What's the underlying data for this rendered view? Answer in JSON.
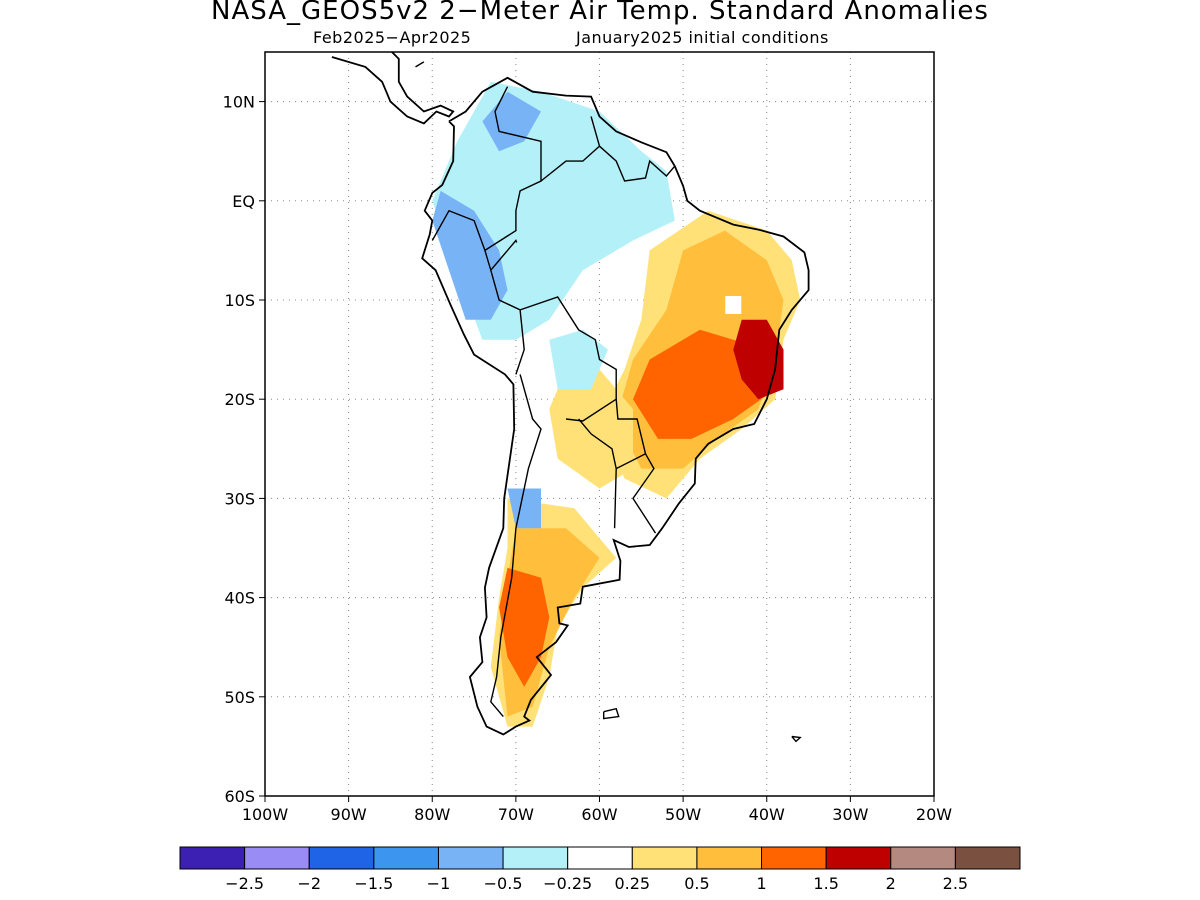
{
  "title": "NASA_GEOS5v2 2−Meter Air Temp. Standard Anomalies",
  "subtitle_left": "Feb2025−Apr2025",
  "subtitle_right": "January2025 initial conditions",
  "map": {
    "lon_range": [
      -100,
      -20
    ],
    "lat_range": [
      -60,
      15
    ],
    "lon_ticks": [
      {
        "value": -100,
        "label": "100W"
      },
      {
        "value": -90,
        "label": "90W"
      },
      {
        "value": -80,
        "label": "80W"
      },
      {
        "value": -70,
        "label": "70W"
      },
      {
        "value": -60,
        "label": "60W"
      },
      {
        "value": -50,
        "label": "50W"
      },
      {
        "value": -40,
        "label": "40W"
      },
      {
        "value": -30,
        "label": "30W"
      },
      {
        "value": -20,
        "label": "20W"
      }
    ],
    "lat_ticks": [
      {
        "value": 10,
        "label": "10N"
      },
      {
        "value": 0,
        "label": "EQ"
      },
      {
        "value": -10,
        "label": "10S"
      },
      {
        "value": -20,
        "label": "20S"
      },
      {
        "value": -30,
        "label": "30S"
      },
      {
        "value": -40,
        "label": "40S"
      },
      {
        "value": -50,
        "label": "50S"
      },
      {
        "value": -60,
        "label": "60S"
      }
    ],
    "grid": "dotted"
  },
  "colorbar": {
    "colors": [
      "#3c20b4",
      "#9a8cf5",
      "#1f64e6",
      "#3c96f0",
      "#78b4f5",
      "#b4f0f8",
      "#ffffff",
      "#ffe178",
      "#ffbe3c",
      "#ff6400",
      "#be0000",
      "#b48a80",
      "#7a5040"
    ],
    "labels": [
      "−2.5",
      "−2",
      "−1.5",
      "−1",
      "−0.5",
      "−0.25",
      "0.25",
      "0.5",
      "1",
      "1.5",
      "2",
      "2.5"
    ]
  },
  "anomaly_regions": [
    {
      "level": 0.5,
      "color": "#ffe178",
      "lonlat": [
        [
          -54,
          -5
        ],
        [
          -47,
          -1
        ],
        [
          -40,
          -3
        ],
        [
          -37,
          -6
        ],
        [
          -36,
          -10
        ],
        [
          -38,
          -14
        ],
        [
          -39,
          -20
        ],
        [
          -43,
          -23
        ],
        [
          -48,
          -26
        ],
        [
          -52,
          -30
        ],
        [
          -57,
          -28
        ],
        [
          -60,
          -22
        ],
        [
          -57,
          -17
        ],
        [
          -55,
          -12
        ]
      ]
    },
    {
      "level": 1,
      "color": "#ffbe3c",
      "lonlat": [
        [
          -50,
          -5
        ],
        [
          -45,
          -3
        ],
        [
          -40,
          -6
        ],
        [
          -38,
          -10
        ],
        [
          -39,
          -16
        ],
        [
          -41,
          -21
        ],
        [
          -46,
          -24
        ],
        [
          -50,
          -27
        ],
        [
          -55,
          -27
        ],
        [
          -58,
          -22
        ],
        [
          -56,
          -16
        ],
        [
          -52,
          -11
        ]
      ]
    },
    {
      "level": 1.5,
      "color": "#ff6400",
      "lonlat": [
        [
          -48,
          -13
        ],
        [
          -44,
          -14
        ],
        [
          -40,
          -15
        ],
        [
          -39,
          -19
        ],
        [
          -44,
          -22
        ],
        [
          -49,
          -24
        ],
        [
          -53,
          -24
        ],
        [
          -56,
          -20
        ],
        [
          -54,
          -16
        ]
      ]
    },
    {
      "level": 2,
      "color": "#be0000",
      "lonlat": [
        [
          -43,
          -12
        ],
        [
          -40,
          -12
        ],
        [
          -38,
          -15
        ],
        [
          -38,
          -19
        ],
        [
          -41,
          -20
        ],
        [
          -43,
          -18
        ],
        [
          -44,
          -15
        ]
      ]
    },
    {
      "level": 0.5,
      "color": "#ffe178",
      "lonlat": [
        [
          -71,
          -30
        ],
        [
          -63,
          -31
        ],
        [
          -61,
          -33
        ],
        [
          -58,
          -36
        ],
        [
          -62,
          -39
        ],
        [
          -65,
          -43
        ],
        [
          -66,
          -48
        ],
        [
          -68,
          -53
        ],
        [
          -71,
          -53
        ],
        [
          -73,
          -47
        ],
        [
          -72,
          -40
        ],
        [
          -71,
          -35
        ]
      ]
    },
    {
      "level": 1,
      "color": "#ffbe3c",
      "lonlat": [
        [
          -70,
          -33
        ],
        [
          -64,
          -33
        ],
        [
          -60,
          -36
        ],
        [
          -63,
          -40
        ],
        [
          -66,
          -45
        ],
        [
          -68,
          -51
        ],
        [
          -71,
          -52
        ],
        [
          -72,
          -44
        ],
        [
          -71,
          -38
        ]
      ]
    },
    {
      "level": 1.5,
      "color": "#ff6400",
      "lonlat": [
        [
          -71,
          -37
        ],
        [
          -67,
          -38
        ],
        [
          -66,
          -42
        ],
        [
          -67,
          -46
        ],
        [
          -69,
          -49
        ],
        [
          -71,
          -46
        ],
        [
          -72,
          -41
        ]
      ]
    },
    {
      "level": 0.5,
      "color": "#ffe178",
      "lonlat": [
        [
          -64,
          -17
        ],
        [
          -60,
          -17
        ],
        [
          -56,
          -21
        ],
        [
          -56,
          -27
        ],
        [
          -60,
          -29
        ],
        [
          -65,
          -26
        ],
        [
          -66,
          -21
        ]
      ]
    },
    {
      "level": -0.25,
      "color": "#b4f0f8",
      "lonlat": [
        [
          -73,
          12
        ],
        [
          -67,
          11
        ],
        [
          -60,
          9
        ],
        [
          -55,
          5
        ],
        [
          -52,
          3
        ],
        [
          -51,
          -2
        ],
        [
          -56,
          -4
        ],
        [
          -62,
          -7
        ],
        [
          -66,
          -12
        ],
        [
          -70,
          -14
        ],
        [
          -74,
          -14
        ],
        [
          -78,
          -5
        ],
        [
          -80,
          0
        ],
        [
          -77,
          6
        ]
      ]
    },
    {
      "level": -0.5,
      "color": "#78b4f5",
      "lonlat": [
        [
          -79,
          1
        ],
        [
          -75,
          -1
        ],
        [
          -72,
          -5
        ],
        [
          -71,
          -9
        ],
        [
          -73,
          -12
        ],
        [
          -76,
          -12
        ],
        [
          -78,
          -7
        ],
        [
          -80,
          -2
        ]
      ]
    },
    {
      "level": -0.5,
      "color": "#78b4f5",
      "lonlat": [
        [
          -71,
          11
        ],
        [
          -67,
          9
        ],
        [
          -69,
          6
        ],
        [
          -72,
          5
        ],
        [
          -74,
          8
        ]
      ]
    },
    {
      "level": -0.25,
      "color": "#b4f0f8",
      "lonlat": [
        [
          -66,
          -14
        ],
        [
          -62,
          -13
        ],
        [
          -59,
          -15
        ],
        [
          -61,
          -19
        ],
        [
          -65,
          -19
        ]
      ]
    },
    {
      "level": -0.5,
      "color": "#78b4f5",
      "lonlat": [
        [
          -71,
          -29
        ],
        [
          -67,
          -29
        ],
        [
          -67,
          -33
        ],
        [
          -70,
          -33
        ]
      ]
    }
  ],
  "hatched_missing": [
    [
      -44,
      -10.5
    ]
  ]
}
